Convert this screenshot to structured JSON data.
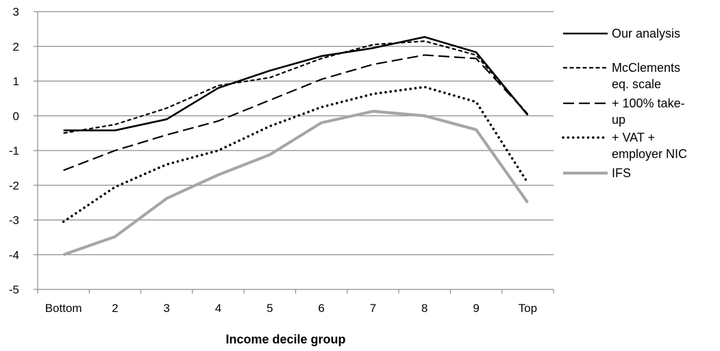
{
  "chart_data": {
    "type": "line",
    "title": "",
    "xlabel": "Income decile group",
    "ylabel": "",
    "categories": [
      "Bottom",
      "2",
      "3",
      "4",
      "5",
      "6",
      "7",
      "8",
      "9",
      "Top"
    ],
    "ylim": [
      -5,
      3
    ],
    "yticks": [
      -5,
      -4,
      -3,
      -2,
      -1,
      0,
      1,
      2,
      3
    ],
    "grid": true,
    "legend_position": "right",
    "series": [
      {
        "name": "Our analysis",
        "color": "#000000",
        "style": "solid",
        "values": [
          -0.42,
          -0.42,
          -0.1,
          0.8,
          1.3,
          1.72,
          1.95,
          2.27,
          1.83,
          0.02
        ]
      },
      {
        "name": "McClements eq. scale",
        "legend_lines": [
          "McClements",
          "eq. scale"
        ],
        "color": "#000000",
        "style": "short-dash",
        "values": [
          -0.5,
          -0.25,
          0.22,
          0.87,
          1.1,
          1.65,
          2.05,
          2.15,
          1.75,
          0.05
        ]
      },
      {
        "name": "+ 100% take-up",
        "legend_lines": [
          "+ 100% take-",
          "up"
        ],
        "color": "#000000",
        "style": "long-dash",
        "values": [
          -1.57,
          -1.0,
          -0.55,
          -0.15,
          0.45,
          1.05,
          1.48,
          1.75,
          1.65,
          0.05
        ]
      },
      {
        "name": "+ VAT + employer NIC",
        "legend_lines": [
          "+ VAT +",
          "employer NIC"
        ],
        "color": "#000000",
        "style": "dotted",
        "values": [
          -3.05,
          -2.05,
          -1.4,
          -1.0,
          -0.3,
          0.25,
          0.63,
          0.83,
          0.4,
          -1.93
        ]
      },
      {
        "name": "IFS",
        "color": "#a6a6a6",
        "style": "thick-solid",
        "values": [
          -4.0,
          -3.48,
          -2.38,
          -1.7,
          -1.12,
          -0.2,
          0.13,
          0.0,
          -0.4,
          -2.5
        ]
      }
    ]
  }
}
